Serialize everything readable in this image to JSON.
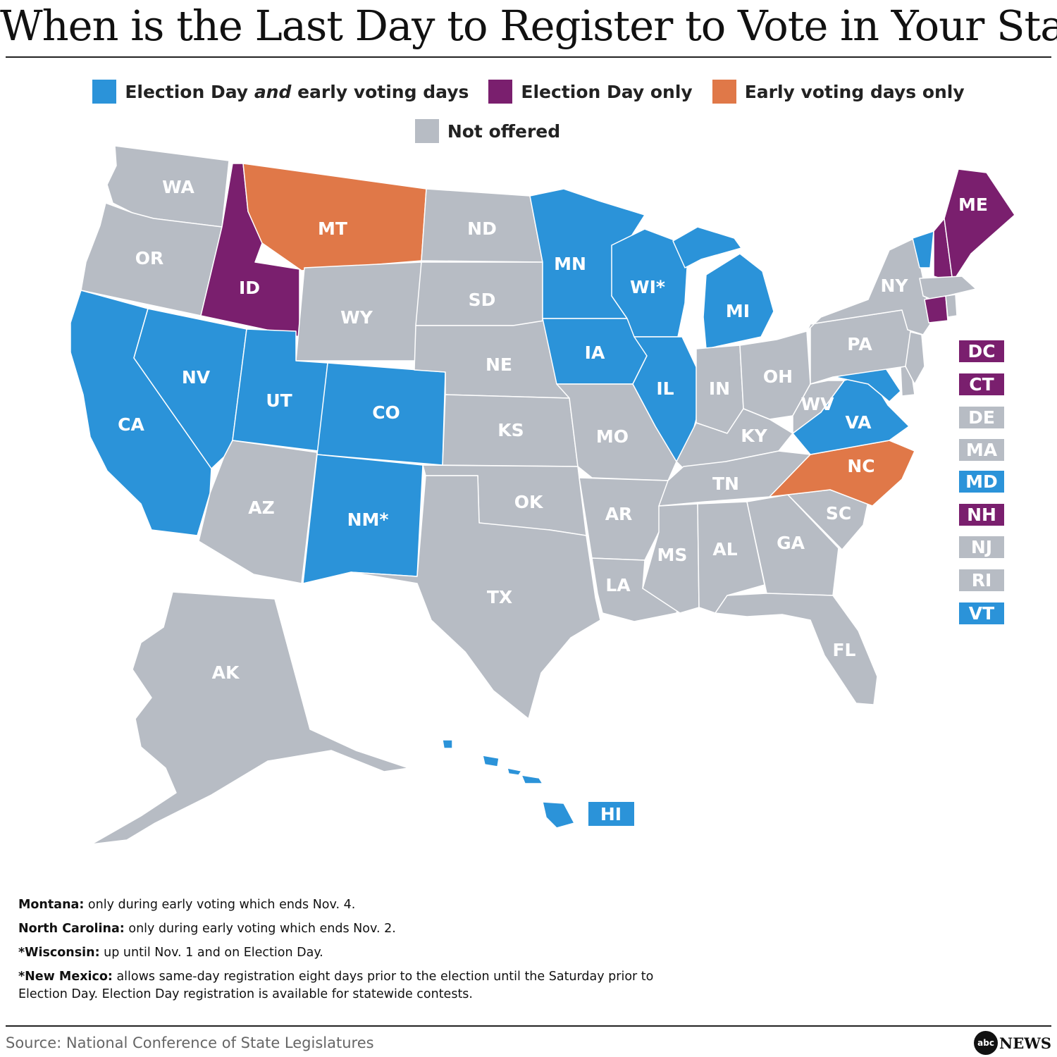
{
  "title": "When is the Last Day to Register to Vote in Your State",
  "legend": [
    {
      "id": "both",
      "label_pre": "Election Day ",
      "label_em": "and",
      "label_post": " early voting days",
      "color": "#2B93D9"
    },
    {
      "id": "eday",
      "label": "Election Day only",
      "color": "#7A1F6E"
    },
    {
      "id": "early",
      "label": "Early voting days only",
      "color": "#E07848"
    },
    {
      "id": "none",
      "label": "Not offered",
      "color": "#B7BCC4"
    }
  ],
  "chart_data": {
    "type": "choropleth",
    "categories": [
      "both",
      "eday",
      "early",
      "none"
    ],
    "states": [
      {
        "code": "WA",
        "label": "WA",
        "cat": "none"
      },
      {
        "code": "OR",
        "label": "OR",
        "cat": "none"
      },
      {
        "code": "CA",
        "label": "CA",
        "cat": "both"
      },
      {
        "code": "NV",
        "label": "NV",
        "cat": "both"
      },
      {
        "code": "ID",
        "label": "ID",
        "cat": "eday"
      },
      {
        "code": "MT",
        "label": "MT",
        "cat": "early"
      },
      {
        "code": "WY",
        "label": "WY",
        "cat": "none"
      },
      {
        "code": "UT",
        "label": "UT",
        "cat": "both"
      },
      {
        "code": "AZ",
        "label": "AZ",
        "cat": "none"
      },
      {
        "code": "CO",
        "label": "CO",
        "cat": "both"
      },
      {
        "code": "NM",
        "label": "NM*",
        "cat": "both"
      },
      {
        "code": "ND",
        "label": "ND",
        "cat": "none"
      },
      {
        "code": "SD",
        "label": "SD",
        "cat": "none"
      },
      {
        "code": "NE",
        "label": "NE",
        "cat": "none"
      },
      {
        "code": "KS",
        "label": "KS",
        "cat": "none"
      },
      {
        "code": "OK",
        "label": "OK",
        "cat": "none"
      },
      {
        "code": "TX",
        "label": "TX",
        "cat": "none"
      },
      {
        "code": "MN",
        "label": "MN",
        "cat": "both"
      },
      {
        "code": "IA",
        "label": "IA",
        "cat": "both"
      },
      {
        "code": "MO",
        "label": "MO",
        "cat": "none"
      },
      {
        "code": "AR",
        "label": "AR",
        "cat": "none"
      },
      {
        "code": "LA",
        "label": "LA",
        "cat": "none"
      },
      {
        "code": "WI",
        "label": "WI*",
        "cat": "both"
      },
      {
        "code": "IL",
        "label": "IL",
        "cat": "both"
      },
      {
        "code": "MI",
        "label": "MI",
        "cat": "both"
      },
      {
        "code": "IN",
        "label": "IN",
        "cat": "none"
      },
      {
        "code": "OH",
        "label": "OH",
        "cat": "none"
      },
      {
        "code": "KY",
        "label": "KY",
        "cat": "none"
      },
      {
        "code": "TN",
        "label": "TN",
        "cat": "none"
      },
      {
        "code": "MS",
        "label": "MS",
        "cat": "none"
      },
      {
        "code": "AL",
        "label": "AL",
        "cat": "none"
      },
      {
        "code": "GA",
        "label": "GA",
        "cat": "none"
      },
      {
        "code": "FL",
        "label": "FL",
        "cat": "none"
      },
      {
        "code": "SC",
        "label": "SC",
        "cat": "none"
      },
      {
        "code": "NC",
        "label": "NC",
        "cat": "early"
      },
      {
        "code": "VA",
        "label": "VA",
        "cat": "both"
      },
      {
        "code": "WV",
        "label": "WV",
        "cat": "none"
      },
      {
        "code": "PA",
        "label": "PA",
        "cat": "none"
      },
      {
        "code": "NY",
        "label": "NY",
        "cat": "none"
      },
      {
        "code": "ME",
        "label": "ME",
        "cat": "eday"
      },
      {
        "code": "AK",
        "label": "AK",
        "cat": "none"
      },
      {
        "code": "HI",
        "label": "HI",
        "cat": "both"
      },
      {
        "code": "DC",
        "label": "DC",
        "cat": "eday"
      },
      {
        "code": "CT",
        "label": "CT",
        "cat": "eday"
      },
      {
        "code": "DE",
        "label": "DE",
        "cat": "none"
      },
      {
        "code": "MA",
        "label": "MA",
        "cat": "none"
      },
      {
        "code": "MD",
        "label": "MD",
        "cat": "both"
      },
      {
        "code": "NH",
        "label": "NH",
        "cat": "eday"
      },
      {
        "code": "NJ",
        "label": "NJ",
        "cat": "none"
      },
      {
        "code": "RI",
        "label": "RI",
        "cat": "none"
      },
      {
        "code": "VT",
        "label": "VT",
        "cat": "both"
      }
    ]
  },
  "notes": [
    {
      "bold": "Montana:",
      "text": " only during early voting which ends Nov. 4."
    },
    {
      "bold": "North Carolina:",
      "text": " only during early voting which ends Nov. 2."
    },
    {
      "bold": "*Wisconsin:",
      "text": " up until Nov. 1 and on Election Day."
    },
    {
      "bold": "*New Mexico:",
      "text": " allows same-day registration eight days prior to the election until the Saturday prior to Election Day. Election Day registration is available for statewide contests."
    }
  ],
  "source": "Source: National Conference of State Legislatures",
  "logo": {
    "mark": "abc",
    "text": "NEWS"
  }
}
